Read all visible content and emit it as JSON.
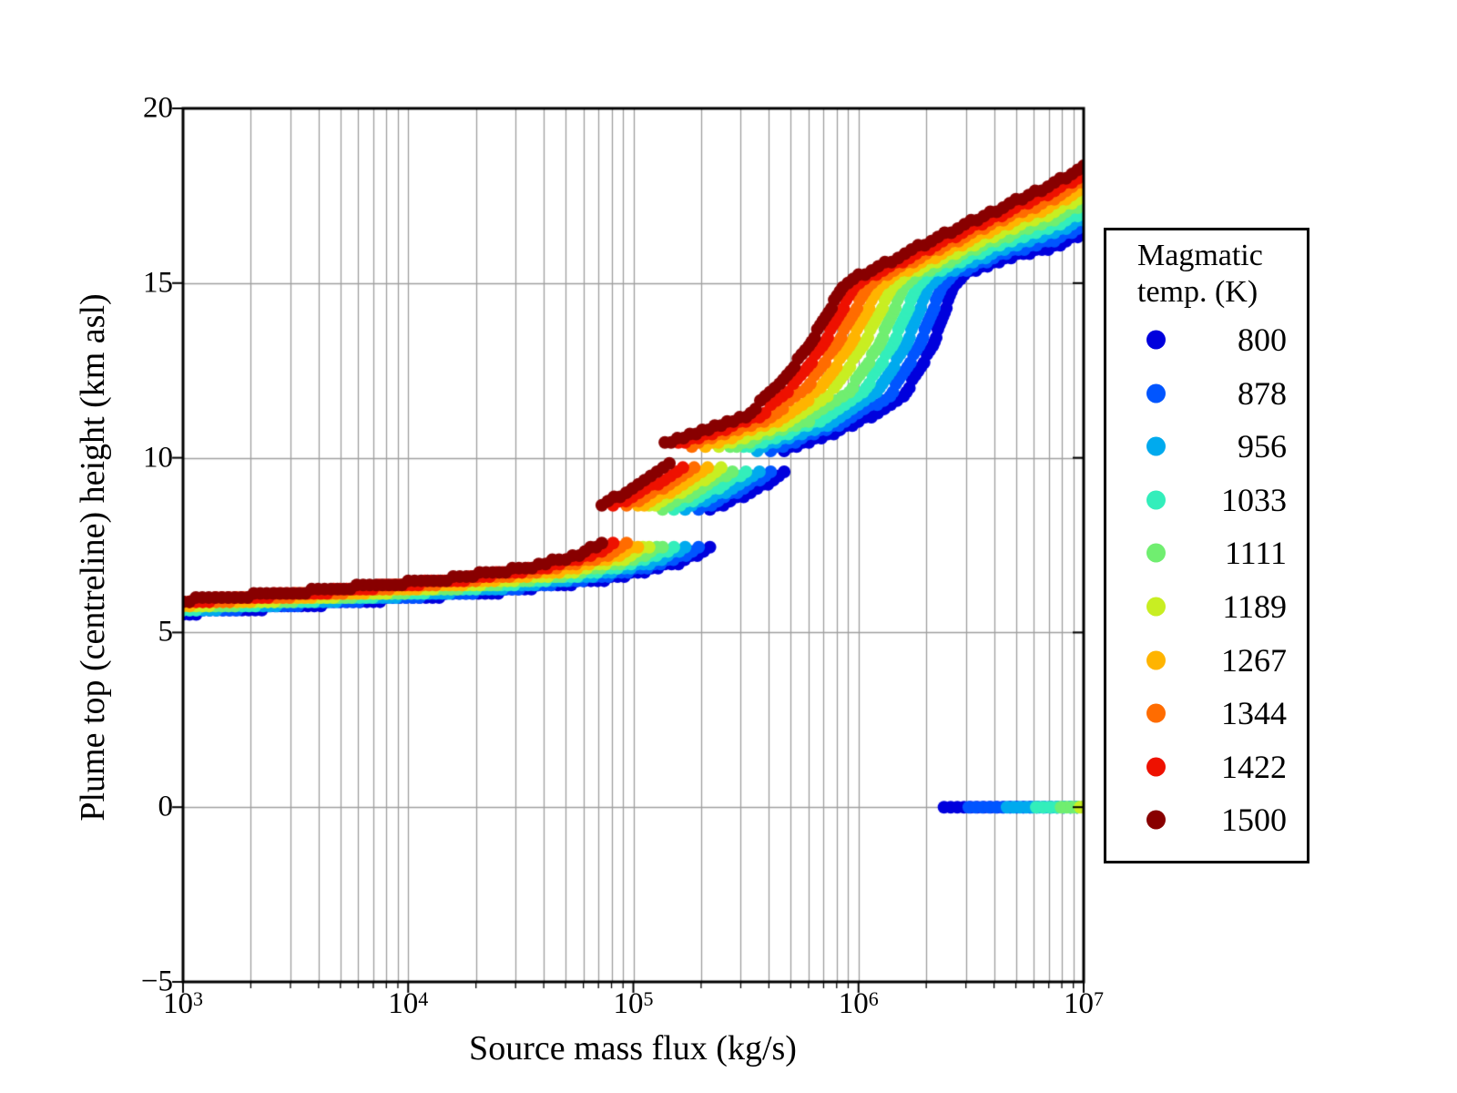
{
  "figure": {
    "legend": {
      "title_line1": "Magmatic",
      "title_line2": "temp. (K)"
    }
  },
  "chart_data": {
    "type": "scatter",
    "title": "",
    "xlabel": "Source mass flux (kg/s)",
    "ylabel": "Plume top (centreline) height (km asl)",
    "x_scale": "log10",
    "xlim_log10": [
      3,
      7
    ],
    "x_tick_exponents": [
      "3",
      "4",
      "5",
      "6",
      "7"
    ],
    "x_tick_base": "10",
    "ylim": [
      -5,
      20
    ],
    "y_ticks": [
      {
        "value": 20,
        "label": "20"
      },
      {
        "value": 15,
        "label": "15"
      },
      {
        "value": 10,
        "label": "10"
      },
      {
        "value": 5,
        "label": "5"
      },
      {
        "value": 0,
        "label": "0"
      },
      {
        "value": -5,
        "label": "−5"
      }
    ],
    "grid": true,
    "gridline_color": "#9e9e9e",
    "legend_title": "Magmatic temp. (K)",
    "legend_position": "outside-right",
    "marker_radius_px": 7,
    "sample_step_log10": 0.03,
    "height_quantum_km": 0.12,
    "series": [
      {
        "name": "800",
        "temperature_K": 800,
        "color": "#0000DD",
        "segments_log10x_height_km": [
          [
            [
              3.0,
              5.55
            ],
            [
              3.7,
              5.85
            ],
            [
              4.4,
              6.17
            ],
            [
              4.9,
              6.55
            ],
            [
              5.2,
              7.0
            ],
            [
              5.34,
              7.38
            ]
          ],
          [
            [
              5.34,
              8.5
            ],
            [
              5.55,
              9.1
            ],
            [
              5.67,
              9.55
            ]
          ],
          [
            [
              5.67,
              10.2
            ],
            [
              6.0,
              11.0
            ],
            [
              6.2,
              11.75
            ],
            [
              6.33,
              13.2
            ],
            [
              6.42,
              14.9
            ],
            [
              6.47,
              15.25
            ],
            [
              6.65,
              15.7
            ],
            [
              6.87,
              16.05
            ],
            [
              7.0,
              16.4
            ]
          ],
          [
            [
              6.38,
              0.0
            ],
            [
              7.0,
              0.0
            ]
          ]
        ]
      },
      {
        "name": "878",
        "temperature_K": 878,
        "color": "#0055FF",
        "segments_log10x_height_km": [
          [
            [
              3.0,
              5.59
            ],
            [
              3.69,
              5.89
            ],
            [
              4.38,
              6.21
            ],
            [
              4.86,
              6.59
            ],
            [
              5.15,
              7.02
            ],
            [
              5.29,
              7.4
            ]
          ],
          [
            [
              5.29,
              8.52
            ],
            [
              5.49,
              9.12
            ],
            [
              5.61,
              9.58
            ]
          ],
          [
            [
              5.61,
              10.22
            ],
            [
              5.94,
              11.02
            ],
            [
              6.14,
              11.79
            ],
            [
              6.27,
              13.2
            ],
            [
              6.37,
              14.9
            ],
            [
              6.42,
              15.24
            ],
            [
              6.63,
              15.82
            ],
            [
              6.87,
              16.25
            ],
            [
              7.0,
              16.62
            ]
          ],
          [
            [
              6.49,
              0.0
            ],
            [
              7.0,
              0.0
            ]
          ]
        ]
      },
      {
        "name": "956",
        "temperature_K": 956,
        "color": "#00AAEE",
        "segments_log10x_height_km": [
          [
            [
              3.0,
              5.63
            ],
            [
              3.68,
              5.93
            ],
            [
              4.36,
              6.25
            ],
            [
              4.82,
              6.62
            ],
            [
              5.1,
              7.05
            ],
            [
              5.23,
              7.42
            ]
          ],
          [
            [
              5.23,
              8.53
            ],
            [
              5.44,
              9.14
            ],
            [
              5.56,
              9.6
            ]
          ],
          [
            [
              5.55,
              10.25
            ],
            [
              5.89,
              11.04
            ],
            [
              6.08,
              11.83
            ],
            [
              6.21,
              13.2
            ],
            [
              6.31,
              14.9
            ],
            [
              6.37,
              15.24
            ],
            [
              6.62,
              15.93
            ],
            [
              6.87,
              16.45
            ],
            [
              7.0,
              16.83
            ]
          ],
          [
            [
              6.66,
              0.0
            ],
            [
              7.0,
              0.0
            ]
          ]
        ]
      },
      {
        "name": "1033",
        "temperature_K": 1033,
        "color": "#33EEBB",
        "segments_log10x_height_km": [
          [
            [
              3.0,
              5.67
            ],
            [
              3.67,
              5.97
            ],
            [
              4.33,
              6.3
            ],
            [
              4.78,
              6.66
            ],
            [
              5.05,
              7.07
            ],
            [
              5.18,
              7.44
            ]
          ],
          [
            [
              5.18,
              8.55
            ],
            [
              5.38,
              9.17
            ],
            [
              5.5,
              9.63
            ]
          ],
          [
            [
              5.49,
              10.27
            ],
            [
              5.83,
              11.07
            ],
            [
              6.02,
              11.87
            ],
            [
              6.15,
              13.2
            ],
            [
              6.26,
              14.9
            ],
            [
              6.31,
              15.23
            ],
            [
              6.6,
              16.05
            ],
            [
              6.87,
              16.65
            ],
            [
              7.0,
              17.05
            ]
          ],
          [
            [
              6.79,
              0.0
            ],
            [
              7.0,
              0.0
            ]
          ]
        ]
      },
      {
        "name": "1111",
        "temperature_K": 1111,
        "color": "#70EE70",
        "segments_log10x_height_km": [
          [
            [
              3.0,
              5.71
            ],
            [
              3.66,
              6.01
            ],
            [
              4.31,
              6.34
            ],
            [
              4.74,
              6.7
            ],
            [
              5.0,
              7.1
            ],
            [
              5.13,
              7.46
            ]
          ],
          [
            [
              5.13,
              8.57
            ],
            [
              5.33,
              9.19
            ],
            [
              5.44,
              9.65
            ]
          ],
          [
            [
              5.43,
              10.3
            ],
            [
              5.78,
              11.09
            ],
            [
              5.96,
              11.91
            ],
            [
              6.09,
              13.2
            ],
            [
              6.2,
              14.9
            ],
            [
              6.26,
              15.23
            ],
            [
              6.58,
              16.17
            ],
            [
              6.87,
              16.85
            ],
            [
              7.0,
              17.27
            ]
          ],
          [
            [
              6.9,
              0.0
            ],
            [
              7.0,
              0.0
            ]
          ]
        ]
      },
      {
        "name": "1189",
        "temperature_K": 1189,
        "color": "#C8EE22",
        "segments_log10x_height_km": [
          [
            [
              3.0,
              5.76
            ],
            [
              3.64,
              6.04
            ],
            [
              4.29,
              6.38
            ],
            [
              4.71,
              6.73
            ],
            [
              4.96,
              7.12
            ],
            [
              5.07,
              7.47
            ]
          ],
          [
            [
              5.07,
              8.58
            ],
            [
              5.27,
              9.21
            ],
            [
              5.39,
              9.68
            ]
          ],
          [
            [
              5.38,
              10.32
            ],
            [
              5.72,
              11.11
            ],
            [
              5.89,
              11.94
            ],
            [
              6.02,
              13.2
            ],
            [
              6.15,
              14.9
            ],
            [
              6.21,
              15.22
            ],
            [
              6.57,
              16.28
            ],
            [
              6.87,
              17.05
            ],
            [
              7.0,
              17.48
            ]
          ],
          [
            [
              6.985,
              0.0
            ],
            [
              7.0,
              0.0
            ]
          ]
        ]
      },
      {
        "name": "1267",
        "temperature_K": 1267,
        "color": "#FFB400",
        "segments_log10x_height_km": [
          [
            [
              3.0,
              5.8
            ],
            [
              3.63,
              6.08
            ],
            [
              4.27,
              6.42
            ],
            [
              4.67,
              6.77
            ],
            [
              4.91,
              7.15
            ],
            [
              5.02,
              7.49
            ]
          ],
          [
            [
              5.02,
              8.6
            ],
            [
              5.22,
              9.23
            ],
            [
              5.33,
              9.7
            ]
          ],
          [
            [
              5.32,
              10.35
            ],
            [
              5.67,
              11.13
            ],
            [
              5.83,
              11.98
            ],
            [
              5.96,
              13.2
            ],
            [
              6.09,
              14.9
            ],
            [
              6.16,
              15.22
            ],
            [
              6.55,
              16.4
            ],
            [
              6.87,
              17.25
            ],
            [
              7.0,
              17.7
            ]
          ]
        ]
      },
      {
        "name": "1344",
        "temperature_K": 1344,
        "color": "#FF6C00",
        "segments_log10x_height_km": [
          [
            [
              3.0,
              5.84
            ],
            [
              3.62,
              6.12
            ],
            [
              4.24,
              6.47
            ],
            [
              4.63,
              6.81
            ],
            [
              4.86,
              7.17
            ],
            [
              4.97,
              7.51
            ]
          ],
          [
            [
              4.97,
              8.62
            ],
            [
              5.16,
              9.26
            ],
            [
              5.27,
              9.73
            ]
          ],
          [
            [
              5.26,
              10.37
            ],
            [
              5.61,
              11.16
            ],
            [
              5.77,
              12.02
            ],
            [
              5.9,
              13.2
            ],
            [
              6.04,
              14.9
            ],
            [
              6.1,
              15.21
            ],
            [
              6.53,
              16.52
            ],
            [
              6.87,
              17.45
            ],
            [
              7.0,
              17.92
            ]
          ]
        ]
      },
      {
        "name": "1422",
        "temperature_K": 1422,
        "color": "#EE1100",
        "segments_log10x_height_km": [
          [
            [
              3.0,
              5.88
            ],
            [
              3.61,
              6.16
            ],
            [
              4.22,
              6.51
            ],
            [
              4.59,
              6.84
            ],
            [
              4.81,
              7.2
            ],
            [
              4.91,
              7.53
            ]
          ],
          [
            [
              4.91,
              8.63
            ],
            [
              5.11,
              9.28
            ],
            [
              5.22,
              9.75
            ]
          ],
          [
            [
              5.2,
              10.4
            ],
            [
              5.56,
              11.18
            ],
            [
              5.71,
              12.06
            ],
            [
              5.84,
              13.2
            ],
            [
              5.98,
              14.9
            ],
            [
              6.05,
              15.21
            ],
            [
              6.52,
              16.63
            ],
            [
              6.87,
              17.65
            ],
            [
              7.0,
              18.13
            ]
          ]
        ]
      },
      {
        "name": "1500",
        "temperature_K": 1500,
        "color": "#880000",
        "segments_log10x_height_km": [
          [
            [
              3.0,
              5.92
            ],
            [
              3.6,
              6.2
            ],
            [
              4.2,
              6.55
            ],
            [
              4.55,
              6.88
            ],
            [
              4.76,
              7.22
            ],
            [
              4.86,
              7.55
            ]
          ],
          [
            [
              4.86,
              8.65
            ],
            [
              5.05,
              9.3
            ],
            [
              5.16,
              9.78
            ]
          ],
          [
            [
              5.14,
              10.42
            ],
            [
              5.5,
              11.2
            ],
            [
              5.65,
              12.1
            ],
            [
              5.78,
              13.2
            ],
            [
              5.93,
              14.9
            ],
            [
              6.0,
              15.2
            ],
            [
              6.5,
              16.75
            ],
            [
              6.87,
              17.85
            ],
            [
              7.0,
              18.35
            ]
          ]
        ]
      }
    ]
  }
}
